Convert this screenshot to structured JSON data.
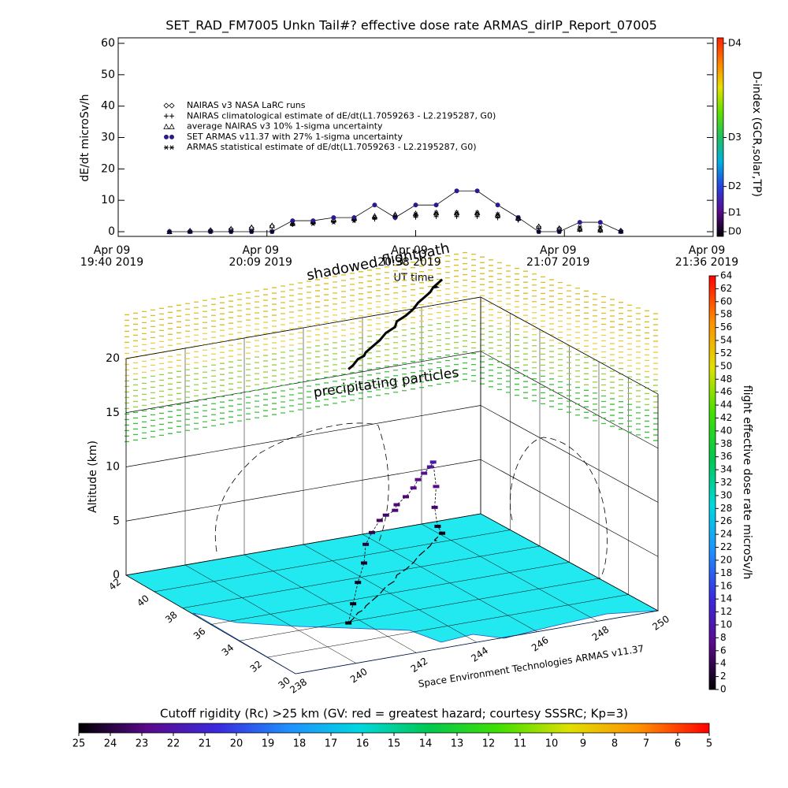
{
  "chart_data": [
    {
      "type": "line",
      "title": "SET_RAD_FM7005  Unkn Tail#? effective dose rate ARMAS_dirIP_Report_07005",
      "ylabel": "dE/dt microSv/h",
      "xlabel": "UT time",
      "x": [
        "2019-04-09T19:50",
        "2019-04-09T19:54",
        "2019-04-09T19:58",
        "2019-04-09T20:02",
        "2019-04-09T20:06",
        "2019-04-09T20:10",
        "2019-04-09T20:14",
        "2019-04-09T20:18",
        "2019-04-09T20:22",
        "2019-04-09T20:26",
        "2019-04-09T20:30",
        "2019-04-09T20:34",
        "2019-04-09T20:38",
        "2019-04-09T20:42",
        "2019-04-09T20:46",
        "2019-04-09T20:50",
        "2019-04-09T20:54",
        "2019-04-09T20:58",
        "2019-04-09T21:02",
        "2019-04-09T21:06",
        "2019-04-09T21:10",
        "2019-04-09T21:14",
        "2019-04-09T21:18"
      ],
      "xlim": [
        "2019-04-09T19:40",
        "2019-04-09T21:36"
      ],
      "xticks": [
        {
          "value": "2019-04-09T19:40",
          "label": "Apr 09\n19:40 2019"
        },
        {
          "value": "2019-04-09T20:09",
          "label": "Apr 09\n20:09 2019"
        },
        {
          "value": "2019-04-09T20:38",
          "label": "Apr 09\n20:38 2019"
        },
        {
          "value": "2019-04-09T21:07",
          "label": "Apr 09\n21:07 2019"
        },
        {
          "value": "2019-04-09T21:36",
          "label": "Apr 09\n21:36 2019"
        }
      ],
      "ylim": [
        -1.5,
        60
      ],
      "yticks": [
        0,
        10,
        20,
        30,
        40,
        50,
        60
      ],
      "legend": "upper left",
      "series": [
        {
          "name": "NAIRAS v3 NASA LaRC runs",
          "marker": "diamond",
          "color": "#000000",
          "values": [
            0,
            0.2,
            0.4,
            0.8,
            1.2,
            1.8,
            2.4,
            3,
            3.5,
            4,
            4.5,
            5,
            5.2,
            5.5,
            5.5,
            5.5,
            5,
            4,
            1.5,
            1,
            0.8,
            0.5,
            0.3
          ]
        },
        {
          "name": "NAIRAS climatological estimate of dE/dt(L1.7059263 - L2.2195287, G0)",
          "marker": "plus",
          "color": "#000000",
          "values": [
            0,
            0,
            0.1,
            0.2,
            0.3,
            0.5,
            2.5,
            2.8,
            3.2,
            3.6,
            4,
            4.4,
            4.6,
            4.8,
            4.8,
            4.8,
            4.4,
            3.6,
            1,
            0.6,
            0.5,
            0.3,
            0.1
          ]
        },
        {
          "name": "average NAIRAS v3 10% 1-sigma uncertainty",
          "marker": "triangle",
          "color": "#000000",
          "values": [
            0.1,
            0.3,
            0.5,
            0.9,
            1.4,
            2,
            2.7,
            3.3,
            3.9,
            4.4,
            5,
            5.5,
            5.8,
            6.1,
            6.1,
            6.1,
            5.5,
            4.4,
            1.7,
            1.1,
            0.9,
            0.6,
            0.3
          ]
        },
        {
          "name": "SET ARMAS v11.37 with 27% 1-sigma uncertainty",
          "marker": "circle",
          "color": "#2a1a8e",
          "line": true,
          "values": [
            0,
            0,
            0,
            0,
            0,
            0,
            3.5,
            3.5,
            4.5,
            4.5,
            8.5,
            4.5,
            8.5,
            8.5,
            13,
            13,
            8.5,
            4.5,
            0,
            0,
            3,
            3,
            0
          ]
        },
        {
          "name": "ARMAS statistical estimate of dE/dt(L1.7059263 - L2.2195287, G0)",
          "marker": "asterisk",
          "color": "#000000",
          "values": [
            0,
            0,
            0,
            0,
            0,
            0,
            2.5,
            2.5,
            3,
            3.5,
            4.5,
            5,
            5.5,
            6,
            6,
            6,
            5.5,
            4.5,
            0,
            0,
            1.5,
            1.5,
            0
          ]
        }
      ],
      "colorbar": {
        "label": "D-index (GCR,solar,TP)",
        "lim": [
          0,
          1
        ],
        "ticks": [
          {
            "value": 0,
            "label": "D0"
          },
          {
            "value": 0.1,
            "label": "D1"
          },
          {
            "value": 0.24,
            "label": "D2"
          },
          {
            "value": 0.5,
            "label": "D3"
          },
          {
            "value": 1,
            "label": "D4"
          }
        ],
        "colors": [
          "#000000",
          "#5a0a8c",
          "#2840e0",
          "#00b0e0",
          "#20c060",
          "#60e000",
          "#e8e000",
          "#ff8000",
          "#ff2000"
        ]
      }
    },
    {
      "type": "scatter3d",
      "zlabel": "Altitude (km)",
      "annotations": [
        "shadowed flightpath",
        "precipitating particles",
        "Space Environment Technologies ARMAS v11.37"
      ],
      "xlim": [
        238,
        250
      ],
      "xticks": [
        238,
        240,
        242,
        244,
        246,
        248,
        250
      ],
      "ylim": [
        30,
        42
      ],
      "yticks": [
        30,
        32,
        34,
        36,
        38,
        40,
        42
      ],
      "zlim": [
        0,
        20
      ],
      "zticks": [
        0,
        5,
        10,
        15,
        20
      ],
      "lon": [
        241.6,
        241.9,
        242.3,
        242.6,
        242.8,
        243.2,
        243.7,
        244.2,
        244.7,
        245.0,
        245.5,
        246.0,
        246.4,
        246.8,
        247.2,
        247.5,
        247.6,
        247.6,
        247.8,
        248.1
      ],
      "lat": [
        33.9,
        34.2,
        34.7,
        34.9,
        35.2,
        35.6,
        36.1,
        36.7,
        37.1,
        37.6,
        38.0,
        38.5,
        39.0,
        39.4,
        39.8,
        40.2,
        40.2,
        40.3,
        40.5,
        40.8
      ],
      "alt": [
        0,
        1.4,
        2.8,
        4.3,
        5.7,
        6.3,
        6.8,
        6.6,
        6.5,
        6.5,
        6.7,
        6.9,
        7.1,
        7.2,
        7.3,
        7.3,
        5,
        3,
        1,
        0
      ],
      "dose": [
        0.5,
        1,
        1.5,
        2,
        3,
        4,
        5,
        5,
        6,
        6,
        6,
        7,
        7,
        8,
        9,
        10,
        7,
        5,
        2,
        0.5
      ],
      "colorbar": {
        "label": "flight effective dose rate microSv/h",
        "lim": [
          0,
          64
        ],
        "ticks": [
          0,
          2,
          4,
          6,
          8,
          10,
          12,
          14,
          16,
          18,
          20,
          22,
          24,
          26,
          28,
          30,
          32,
          34,
          36,
          38,
          40,
          42,
          44,
          46,
          48,
          50,
          52,
          54,
          56,
          58,
          60,
          62,
          64
        ],
        "colors": [
          "#000000",
          "#5a0a8c",
          "#3a2ae0",
          "#1e90ff",
          "#00d8e0",
          "#00c850",
          "#40e000",
          "#e0e000",
          "#ff9000",
          "#ff0000"
        ]
      },
      "floor_colorbar": {
        "title": "Cutoff rigidity (Rc) >25 km (GV: red = greatest hazard; courtesy SSSRC; Kp=3)",
        "lim": [
          25,
          5
        ],
        "ticks": [
          25,
          24,
          23,
          22,
          21,
          20,
          19,
          18,
          17,
          16,
          15,
          14,
          13,
          12,
          11,
          10,
          9,
          8,
          7,
          6,
          5
        ],
        "colors": [
          "#000000",
          "#5a0a8c",
          "#3a2ae0",
          "#1e90ff",
          "#00d8e0",
          "#00c850",
          "#40e000",
          "#e0e000",
          "#ff9000",
          "#ff0000"
        ]
      }
    }
  ]
}
